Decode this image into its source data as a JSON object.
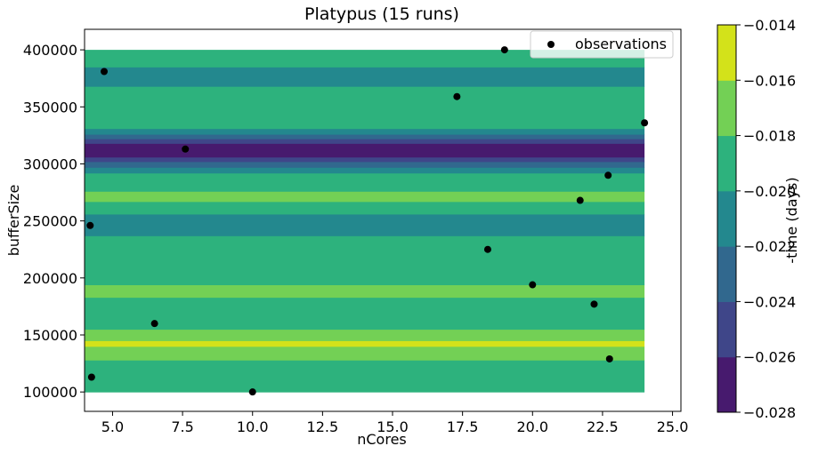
{
  "chart_data": {
    "type": "heatmap",
    "title": "Platypus (15 runs)",
    "xlabel": "nCores",
    "ylabel": "bufferSize",
    "xlim": [
      4.0,
      25.3
    ],
    "ylim": [
      83000,
      418000
    ],
    "xticks": [
      "5.0",
      "7.5",
      "10.0",
      "12.5",
      "15.0",
      "17.5",
      "20.0",
      "22.5",
      "25.0"
    ],
    "xtick_values": [
      5.0,
      7.5,
      10.0,
      12.5,
      15.0,
      17.5,
      20.0,
      22.5,
      25.0
    ],
    "yticks": [
      "100000",
      "150000",
      "200000",
      "250000",
      "300000",
      "350000",
      "400000"
    ],
    "ytick_values": [
      100000,
      150000,
      200000,
      250000,
      300000,
      350000,
      400000
    ],
    "heatmap_extent_x": [
      4.0,
      24.0
    ],
    "bands": [
      {
        "y0": 100000,
        "y1": 128000,
        "level": -0.019
      },
      {
        "y0": 128000,
        "y1": 140000,
        "level": -0.017
      },
      {
        "y0": 140000,
        "y1": 145000,
        "level": -0.015
      },
      {
        "y0": 145000,
        "y1": 155000,
        "level": -0.017
      },
      {
        "y0": 155000,
        "y1": 183000,
        "level": -0.019
      },
      {
        "y0": 183000,
        "y1": 194000,
        "level": -0.017
      },
      {
        "y0": 194000,
        "y1": 237000,
        "level": -0.019
      },
      {
        "y0": 237000,
        "y1": 256000,
        "level": -0.021
      },
      {
        "y0": 256000,
        "y1": 267000,
        "level": -0.019
      },
      {
        "y0": 267000,
        "y1": 276000,
        "level": -0.017
      },
      {
        "y0": 276000,
        "y1": 292000,
        "level": -0.019
      },
      {
        "y0": 292000,
        "y1": 297000,
        "level": -0.021
      },
      {
        "y0": 297000,
        "y1": 302000,
        "level": -0.023
      },
      {
        "y0": 302000,
        "y1": 306000,
        "level": -0.025
      },
      {
        "y0": 306000,
        "y1": 318000,
        "level": -0.027
      },
      {
        "y0": 318000,
        "y1": 322000,
        "level": -0.025
      },
      {
        "y0": 322000,
        "y1": 326000,
        "level": -0.023
      },
      {
        "y0": 326000,
        "y1": 331000,
        "level": -0.021
      },
      {
        "y0": 331000,
        "y1": 368000,
        "level": -0.019
      },
      {
        "y0": 368000,
        "y1": 385000,
        "level": -0.021
      },
      {
        "y0": 385000,
        "y1": 400000,
        "level": -0.019
      }
    ],
    "series": [
      {
        "name": "observations",
        "points": [
          {
            "x": 4.25,
            "y": 113000
          },
          {
            "x": 4.2,
            "y": 246000
          },
          {
            "x": 4.7,
            "y": 381000
          },
          {
            "x": 6.5,
            "y": 160000
          },
          {
            "x": 7.6,
            "y": 313000
          },
          {
            "x": 10.0,
            "y": 100000
          },
          {
            "x": 17.3,
            "y": 359000
          },
          {
            "x": 18.4,
            "y": 225000
          },
          {
            "x": 19.0,
            "y": 400000
          },
          {
            "x": 20.0,
            "y": 194000
          },
          {
            "x": 21.7,
            "y": 268000
          },
          {
            "x": 22.2,
            "y": 177000
          },
          {
            "x": 22.7,
            "y": 290000
          },
          {
            "x": 22.75,
            "y": 129000
          },
          {
            "x": 24.0,
            "y": 336000
          }
        ]
      }
    ],
    "legend": {
      "position": "top-right",
      "label": "observations"
    },
    "colorbar": {
      "label": "-time (days)",
      "ticks": [
        "−0.028",
        "−0.026",
        "−0.024",
        "−0.022",
        "−0.020",
        "−0.018",
        "−0.016",
        "−0.014"
      ],
      "levels": [
        -0.028,
        -0.026,
        -0.024,
        -0.022,
        -0.02,
        -0.018,
        -0.016,
        -0.014
      ],
      "colors": [
        "#471a6e",
        "#3f4689",
        "#31688e",
        "#23888e",
        "#2db27d",
        "#73d055",
        "#d3e21a"
      ]
    }
  }
}
